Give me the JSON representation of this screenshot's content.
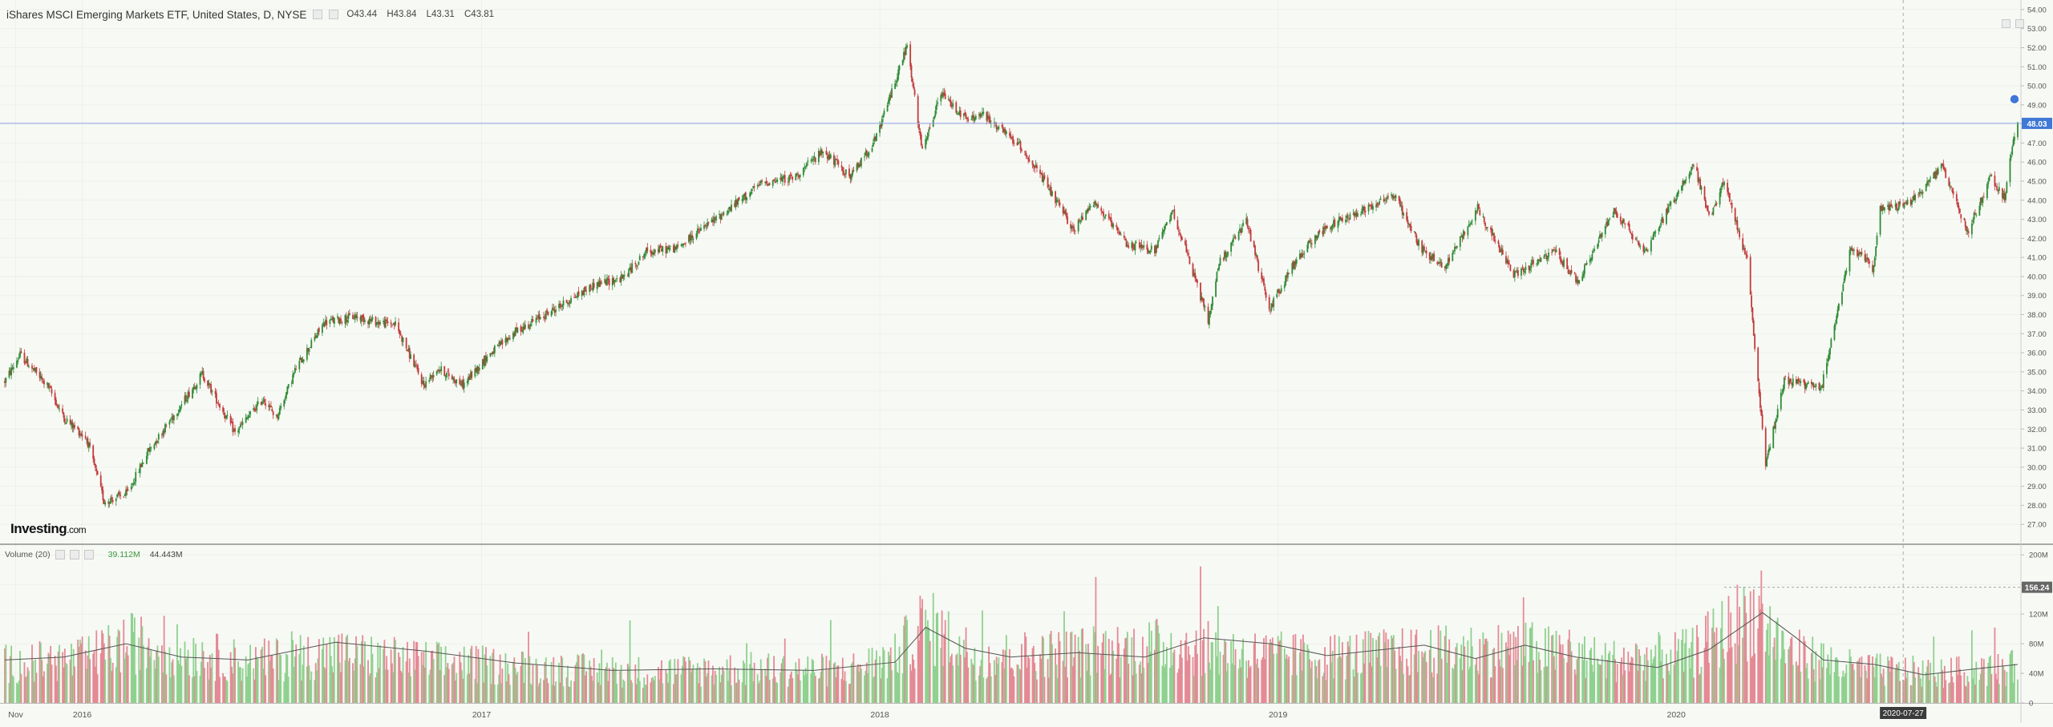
{
  "header": {
    "title": "iShares MSCI Emerging Markets ETF, United States, D, NYSE",
    "open": "O43.44",
    "high": "H43.84",
    "low": "L43.31",
    "close": "C43.81"
  },
  "volume_header": {
    "label": "Volume (20)",
    "volume_value": "39.112M",
    "ma_value": "44.443M"
  },
  "watermark": "Investing.com",
  "colors": {
    "up": "#2e8b35",
    "down": "#c23b3b",
    "vol_up": "#8fd18f",
    "vol_down": "#e48a95",
    "price_line": "#8fa6e6",
    "price_badge": "#3f78d6",
    "volume_badge": "#666666",
    "background": "#f7f9f5"
  },
  "chart_data": [
    {
      "type": "candlestick",
      "price_axis": {
        "range": [
          26.0,
          54.5
        ],
        "ticks": [
          "54.00",
          "53.00",
          "52.00",
          "51.00",
          "50.00",
          "49.00",
          "48.00",
          "47.00",
          "46.00",
          "45.00",
          "44.00",
          "43.00",
          "42.00",
          "41.00",
          "40.00",
          "39.00",
          "38.00",
          "37.00",
          "36.00",
          "35.00",
          "34.00",
          "33.00",
          "32.00",
          "31.00",
          "30.00",
          "29.00",
          "28.00",
          "27.00"
        ]
      },
      "time_axis": {
        "range": [
          "2015-10-22",
          "2020-11-09"
        ],
        "ticks": [
          {
            "date": "2015-11-01",
            "label": "Nov"
          },
          {
            "date": "2016-01-01",
            "label": "2016"
          },
          {
            "date": "2017-01-01",
            "label": "2017"
          },
          {
            "date": "2018-01-01",
            "label": "2018"
          },
          {
            "date": "2019-01-01",
            "label": "2019"
          },
          {
            "date": "2020-01-01",
            "label": "2020"
          }
        ],
        "crosshair_label": {
          "date": "2020-07-27",
          "label": "2020-07-27"
        }
      },
      "current_price": {
        "value": 48.03,
        "label": "48.03"
      },
      "price_path": [
        [
          "2015-10-22",
          34.5
        ],
        [
          "2015-11-05",
          35.9
        ],
        [
          "2015-12-01",
          34.2
        ],
        [
          "2015-12-15",
          32.6
        ],
        [
          "2016-01-05",
          31.5
        ],
        [
          "2016-01-21",
          28.2
        ],
        [
          "2016-02-11",
          28.6
        ],
        [
          "2016-03-01",
          30.8
        ],
        [
          "2016-04-01",
          33.3
        ],
        [
          "2016-04-20",
          34.9
        ],
        [
          "2016-05-20",
          31.8
        ],
        [
          "2016-06-15",
          33.6
        ],
        [
          "2016-06-27",
          32.6
        ],
        [
          "2016-07-15",
          35.2
        ],
        [
          "2016-08-10",
          37.6
        ],
        [
          "2016-09-07",
          37.9
        ],
        [
          "2016-09-28",
          37.6
        ],
        [
          "2016-10-14",
          37.5
        ],
        [
          "2016-11-09",
          34.3
        ],
        [
          "2016-11-22",
          35.2
        ],
        [
          "2016-12-15",
          34.3
        ],
        [
          "2017-01-06",
          35.8
        ],
        [
          "2017-02-01",
          37.1
        ],
        [
          "2017-03-15",
          38.5
        ],
        [
          "2017-04-15",
          39.6
        ],
        [
          "2017-05-10",
          39.9
        ],
        [
          "2017-06-01",
          41.3
        ],
        [
          "2017-06-30",
          41.5
        ],
        [
          "2017-07-15",
          42.2
        ],
        [
          "2017-08-15",
          43.5
        ],
        [
          "2017-09-15",
          44.9
        ],
        [
          "2017-10-15",
          45.2
        ],
        [
          "2017-11-10",
          46.6
        ],
        [
          "2017-12-05",
          45.2
        ],
        [
          "2017-12-29",
          47.3
        ],
        [
          "2018-01-10",
          49.4
        ],
        [
          "2018-01-26",
          52.1
        ],
        [
          "2018-02-09",
          46.5
        ],
        [
          "2018-02-26",
          49.6
        ],
        [
          "2018-03-22",
          48.2
        ],
        [
          "2018-04-05",
          48.5
        ],
        [
          "2018-04-20",
          47.8
        ],
        [
          "2018-05-10",
          46.8
        ],
        [
          "2018-05-25",
          45.6
        ],
        [
          "2018-06-28",
          42.4
        ],
        [
          "2018-07-15",
          44.0
        ],
        [
          "2018-08-15",
          41.7
        ],
        [
          "2018-09-10",
          41.4
        ],
        [
          "2018-09-27",
          43.4
        ],
        [
          "2018-10-29",
          37.7
        ],
        [
          "2018-11-08",
          40.7
        ],
        [
          "2018-12-03",
          42.9
        ],
        [
          "2018-12-24",
          38.3
        ],
        [
          "2019-01-15",
          40.6
        ],
        [
          "2019-02-05",
          42.2
        ],
        [
          "2019-03-01",
          43.0
        ],
        [
          "2019-04-17",
          44.3
        ],
        [
          "2019-05-13",
          41.4
        ],
        [
          "2019-06-03",
          40.5
        ],
        [
          "2019-07-03",
          43.6
        ],
        [
          "2019-08-05",
          40.1
        ],
        [
          "2019-09-12",
          41.3
        ],
        [
          "2019-10-03",
          39.7
        ],
        [
          "2019-11-05",
          43.5
        ],
        [
          "2019-12-03",
          41.3
        ],
        [
          "2020-01-17",
          45.9
        ],
        [
          "2020-02-01",
          43.0
        ],
        [
          "2020-02-14",
          45.0
        ],
        [
          "2020-03-06",
          40.8
        ],
        [
          "2020-03-23",
          30.1
        ],
        [
          "2020-04-09",
          34.6
        ],
        [
          "2020-05-13",
          34.1
        ],
        [
          "2020-06-09",
          41.6
        ],
        [
          "2020-06-30",
          40.4
        ],
        [
          "2020-07-06",
          43.6
        ],
        [
          "2020-08-01",
          43.8
        ],
        [
          "2020-09-01",
          45.8
        ],
        [
          "2020-09-24",
          42.3
        ],
        [
          "2020-10-15",
          45.2
        ],
        [
          "2020-10-28",
          44.1
        ],
        [
          "2020-11-04",
          46.8
        ],
        [
          "2020-11-09",
          48.0
        ]
      ]
    },
    {
      "type": "bar",
      "name": "Volume (20)",
      "value_axis": {
        "range": [
          0,
          210
        ],
        "ticks": [
          "200M",
          "160M",
          "120M",
          "80M",
          "40M",
          "0"
        ]
      },
      "volume_badge": {
        "value": 156.24,
        "label": "156.24"
      },
      "volume_level_path": [
        [
          "2015-10-22",
          55
        ],
        [
          "2016-01-01",
          62
        ],
        [
          "2016-02-15",
          85
        ],
        [
          "2016-06-01",
          58
        ],
        [
          "2016-08-15",
          70
        ],
        [
          "2016-11-01",
          60
        ],
        [
          "2017-03-01",
          48
        ],
        [
          "2017-06-01",
          44
        ],
        [
          "2017-09-01",
          48
        ],
        [
          "2017-12-01",
          46
        ],
        [
          "2018-01-15",
          65
        ],
        [
          "2018-02-10",
          112
        ],
        [
          "2018-04-01",
          65
        ],
        [
          "2018-07-01",
          72
        ],
        [
          "2018-10-01",
          82
        ],
        [
          "2018-12-01",
          70
        ],
        [
          "2019-02-01",
          65
        ],
        [
          "2019-05-15",
          72
        ],
        [
          "2019-08-15",
          78
        ],
        [
          "2019-11-01",
          60
        ],
        [
          "2020-01-15",
          70
        ],
        [
          "2020-03-10",
          128
        ],
        [
          "2020-04-15",
          72
        ],
        [
          "2020-06-15",
          48
        ],
        [
          "2020-09-01",
          42
        ],
        [
          "2020-11-09",
          50
        ]
      ],
      "ma_path": [
        [
          "2015-10-22",
          58
        ],
        [
          "2015-12-15",
          62
        ],
        [
          "2016-02-10",
          80
        ],
        [
          "2016-04-01",
          62
        ],
        [
          "2016-06-01",
          58
        ],
        [
          "2016-08-20",
          82
        ],
        [
          "2016-11-10",
          70
        ],
        [
          "2017-02-01",
          54
        ],
        [
          "2017-05-01",
          44
        ],
        [
          "2017-08-01",
          46
        ],
        [
          "2017-11-01",
          44
        ],
        [
          "2018-01-15",
          55
        ],
        [
          "2018-02-12",
          102
        ],
        [
          "2018-03-20",
          74
        ],
        [
          "2018-05-01",
          62
        ],
        [
          "2018-07-01",
          68
        ],
        [
          "2018-09-01",
          62
        ],
        [
          "2018-10-25",
          88
        ],
        [
          "2018-12-25",
          80
        ],
        [
          "2019-02-15",
          64
        ],
        [
          "2019-05-15",
          78
        ],
        [
          "2019-07-01",
          60
        ],
        [
          "2019-08-15",
          78
        ],
        [
          "2019-10-01",
          62
        ],
        [
          "2019-12-15",
          48
        ],
        [
          "2020-01-31",
          72
        ],
        [
          "2020-03-20",
          122
        ],
        [
          "2020-04-20",
          88
        ],
        [
          "2020-05-15",
          58
        ],
        [
          "2020-07-01",
          52
        ],
        [
          "2020-08-15",
          38
        ],
        [
          "2020-10-01",
          46
        ],
        [
          "2020-11-09",
          52
        ]
      ]
    }
  ]
}
